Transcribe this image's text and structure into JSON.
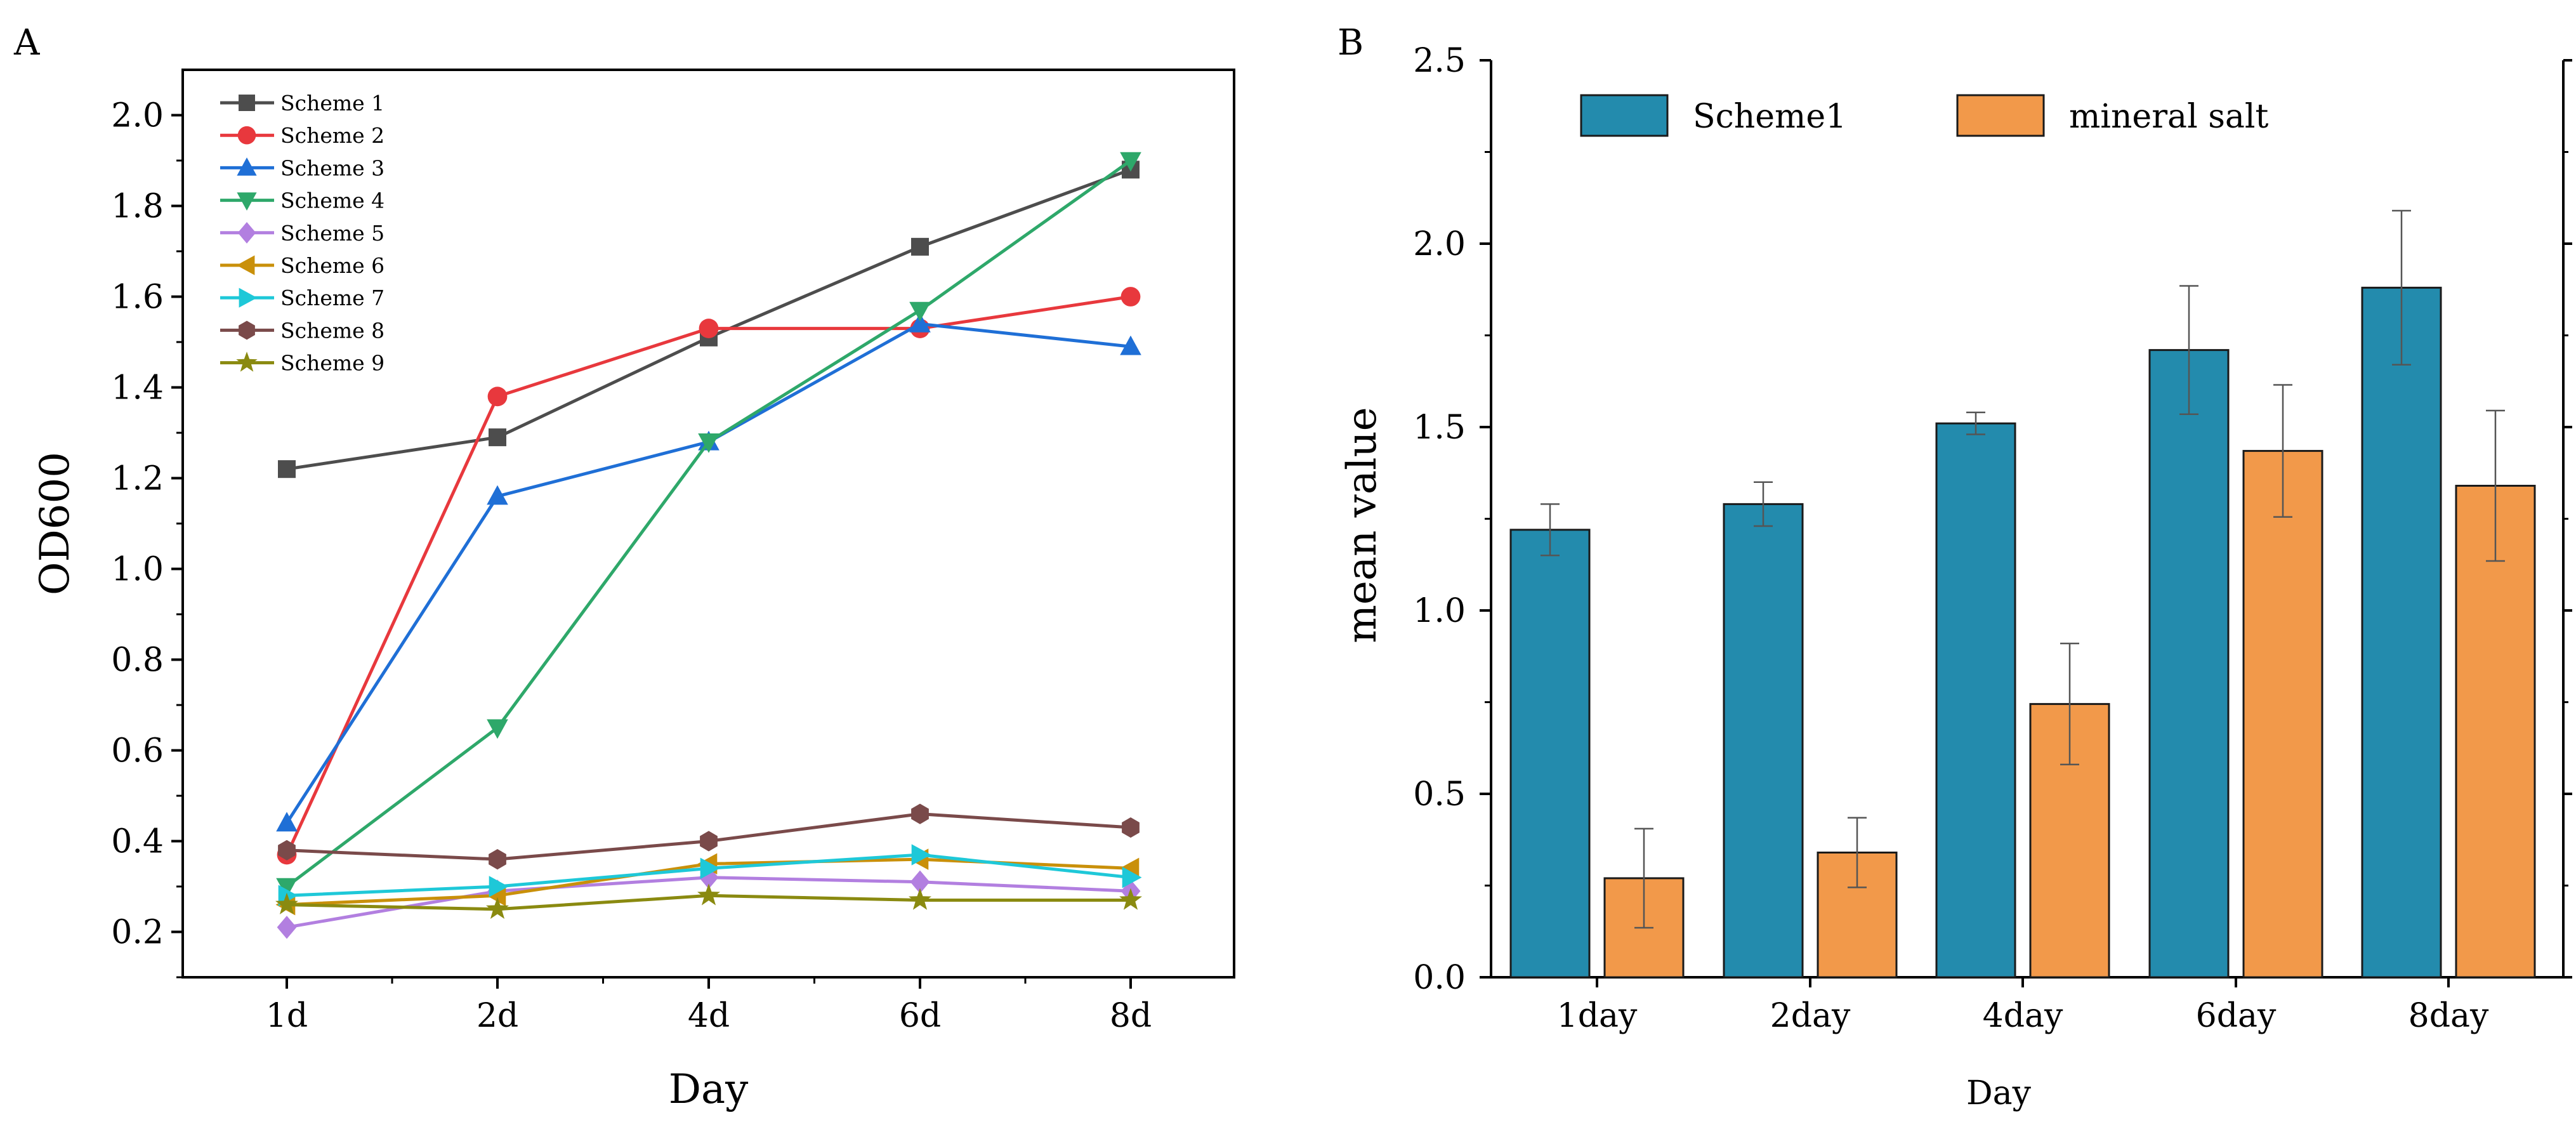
{
  "chart_data": [
    {
      "panel": "A",
      "type": "line",
      "title": "",
      "xlabel": "Day",
      "ylabel": "OD600",
      "categories": [
        "1d",
        "2d",
        "4d",
        "6d",
        "8d"
      ],
      "ylim": [
        0.1,
        2.1
      ],
      "yticks": [
        "0.2",
        "0.4",
        "0.6",
        "0.8",
        "1.0",
        "1.2",
        "1.4",
        "1.6",
        "1.8",
        "2.0"
      ],
      "legend_position": "top-left",
      "series": [
        {
          "name": "Scheme 1",
          "color": "#4d4d4d",
          "marker": "square",
          "values": [
            1.22,
            1.29,
            1.51,
            1.71,
            1.88
          ]
        },
        {
          "name": "Scheme 2",
          "color": "#e8383d",
          "marker": "circle",
          "values": [
            0.37,
            1.38,
            1.53,
            1.53,
            1.6
          ]
        },
        {
          "name": "Scheme 3",
          "color": "#1f6fd6",
          "marker": "triangle-up",
          "values": [
            0.44,
            1.16,
            1.28,
            1.54,
            1.49
          ]
        },
        {
          "name": "Scheme 4",
          "color": "#2ea86a",
          "marker": "triangle-down",
          "values": [
            0.3,
            0.65,
            1.28,
            1.57,
            1.9
          ]
        },
        {
          "name": "Scheme 5",
          "color": "#b27fe0",
          "marker": "diamond",
          "values": [
            0.21,
            0.29,
            0.32,
            0.31,
            0.29
          ]
        },
        {
          "name": "Scheme 6",
          "color": "#c9900a",
          "marker": "triangle-left",
          "values": [
            0.26,
            0.28,
            0.35,
            0.36,
            0.34
          ]
        },
        {
          "name": "Scheme 7",
          "color": "#1ec8d8",
          "marker": "triangle-right",
          "values": [
            0.28,
            0.3,
            0.34,
            0.37,
            0.32
          ]
        },
        {
          "name": "Scheme 8",
          "color": "#7a4a4a",
          "marker": "hexagon",
          "values": [
            0.38,
            0.36,
            0.4,
            0.46,
            0.43
          ]
        },
        {
          "name": "Scheme 9",
          "color": "#8a8a10",
          "marker": "star",
          "values": [
            0.26,
            0.25,
            0.28,
            0.27,
            0.27
          ]
        }
      ]
    },
    {
      "panel": "B",
      "type": "bar",
      "title": "",
      "xlabel": "Day",
      "ylabel": "mean value",
      "categories": [
        "1day",
        "2day",
        "4day",
        "6day",
        "8day"
      ],
      "ylim": [
        0.0,
        2.5
      ],
      "yticks": [
        "0.0",
        "0.5",
        "1.0",
        "1.5",
        "2.0",
        "2.5"
      ],
      "legend_position": "top",
      "series": [
        {
          "name": "Scheme1",
          "color": "#238bad",
          "values": [
            1.22,
            1.29,
            1.51,
            1.71,
            1.88
          ],
          "errors": [
            0.07,
            0.06,
            0.03,
            0.175,
            0.21
          ]
        },
        {
          "name": "mineral salt",
          "color": "#f2994a",
          "values": [
            0.27,
            0.34,
            0.745,
            1.435,
            1.34
          ],
          "errors": [
            0.135,
            0.095,
            0.165,
            0.18,
            0.205
          ]
        }
      ]
    }
  ]
}
